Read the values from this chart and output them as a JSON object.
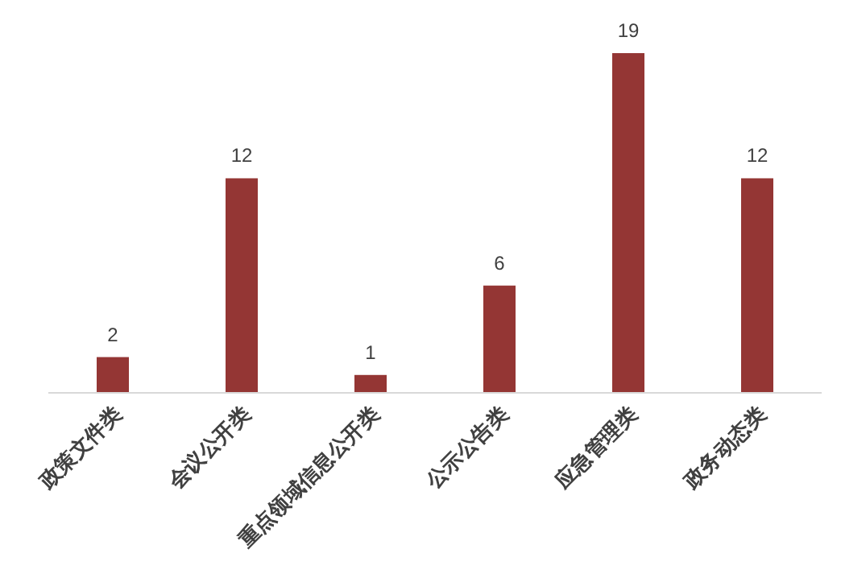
{
  "chart_data": {
    "type": "bar",
    "categories": [
      "政策文件类",
      "会议公开类",
      "重点领域信息公开类",
      "公示公告类",
      "应急管理类",
      "政务动态类"
    ],
    "values": [
      2,
      12,
      1,
      6,
      19,
      12
    ],
    "color": "#943634",
    "data_labels": true
  }
}
